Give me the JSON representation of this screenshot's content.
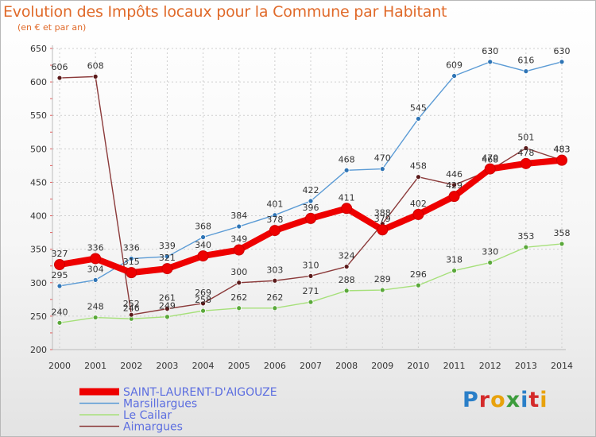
{
  "header": {
    "title": "Evolution des Impôts locaux pour la Commune par Habitant",
    "subtitle": "(en € et par an)"
  },
  "logo": {
    "text": "Proxiti"
  },
  "chart_data": {
    "type": "line",
    "title": "Evolution des Impôts locaux pour la Commune par Habitant",
    "subtitle": "(en € et par an)",
    "xlabel": "",
    "ylabel": "",
    "x": [
      "2000",
      "2001",
      "2002",
      "2003",
      "2004",
      "2005",
      "2006",
      "2007",
      "2008",
      "2009",
      "2010",
      "2011",
      "2012",
      "2013",
      "2014"
    ],
    "ylim": [
      200,
      650
    ],
    "yticks": [
      200,
      250,
      300,
      350,
      400,
      450,
      500,
      550,
      600,
      650
    ],
    "grid": true,
    "legend_position": "bottom-left",
    "series": [
      {
        "name": "SAINT-LAURENT-D'AIGOUZE",
        "color": "#ee0000",
        "marker_color": "#ee0000",
        "values": [
          327,
          336,
          315,
          321,
          340,
          349,
          378,
          396,
          411,
          379,
          402,
          429,
          470,
          478,
          483
        ]
      },
      {
        "name": "Marsillargues",
        "color": "#5b9bd5",
        "marker_color": "#2e74b5",
        "values": [
          295,
          304,
          336,
          339,
          368,
          384,
          401,
          422,
          468,
          470,
          545,
          609,
          630,
          616,
          630
        ]
      },
      {
        "name": "Le Cailar",
        "color": "#a6e07a",
        "marker_color": "#5aa83a",
        "values": [
          240,
          248,
          246,
          249,
          258,
          262,
          262,
          271,
          288,
          289,
          296,
          318,
          330,
          353,
          358
        ]
      },
      {
        "name": "Aimargues",
        "color": "#8b3a3a",
        "marker_color": "#5a1a1a",
        "values": [
          606,
          608,
          252,
          261,
          269,
          300,
          303,
          310,
          324,
          388,
          458,
          446,
          468,
          501,
          483
        ]
      }
    ]
  }
}
